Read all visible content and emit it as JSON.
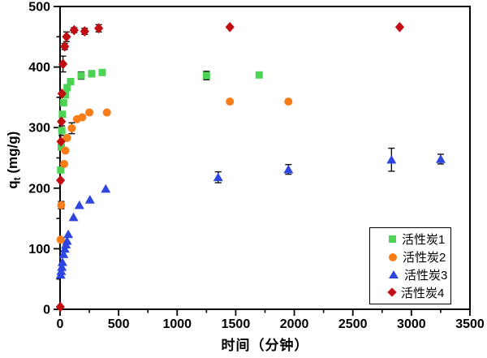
{
  "figure": {
    "background": "#ffffff",
    "axis_color": "#000000",
    "error_bar_color": "#111111"
  },
  "chart_data": {
    "type": "scatter",
    "title": "",
    "xlabel": "时间（分钟）",
    "ylabel": "qt (mg/g)",
    "ylabel_parts": {
      "base": "q",
      "sub": "t",
      "rest": " (mg/g)"
    },
    "xlim": [
      0,
      3500
    ],
    "ylim": [
      0,
      500
    ],
    "x_major_ticks": [
      0,
      500,
      1000,
      1500,
      2000,
      2500,
      3000,
      3500
    ],
    "x_minor_ticks": [
      250,
      750,
      1250,
      1750,
      2250,
      2750,
      3250
    ],
    "y_major_ticks": [
      0,
      100,
      200,
      300,
      400,
      500
    ],
    "y_minor_ticks": [
      50,
      150,
      250,
      350,
      450
    ],
    "grid": false,
    "legend": {
      "position": "inside-lower-right",
      "border_color": "#000000"
    },
    "series": [
      {
        "name": "活性炭1",
        "marker": "square",
        "color": "#4ed455",
        "points": [
          [
            5,
            230,
            0
          ],
          [
            10,
            268,
            0
          ],
          [
            15,
            295,
            8
          ],
          [
            20,
            322,
            0
          ],
          [
            30,
            341,
            0
          ],
          [
            45,
            354,
            0
          ],
          [
            60,
            366,
            0
          ],
          [
            90,
            376,
            0
          ],
          [
            180,
            386,
            6
          ],
          [
            270,
            389,
            5
          ],
          [
            360,
            391,
            0
          ],
          [
            1250,
            386,
            7
          ],
          [
            1700,
            387,
            0
          ]
        ]
      },
      {
        "name": "活性炭2",
        "marker": "circle",
        "color": "#f87c17",
        "points": [
          [
            5,
            115,
            0
          ],
          [
            10,
            172,
            6
          ],
          [
            35,
            240,
            0
          ],
          [
            45,
            262,
            0
          ],
          [
            60,
            283,
            0
          ],
          [
            100,
            299,
            9
          ],
          [
            145,
            314,
            0
          ],
          [
            190,
            317,
            0
          ],
          [
            250,
            325,
            0
          ],
          [
            400,
            325,
            0
          ],
          [
            1450,
            343,
            0
          ],
          [
            1950,
            343,
            0
          ]
        ]
      },
      {
        "name": "活性炭3",
        "marker": "triangle",
        "color": "#2e45e0",
        "points": [
          [
            5,
            57,
            0
          ],
          [
            10,
            63,
            0
          ],
          [
            15,
            70,
            0
          ],
          [
            20,
            78,
            0
          ],
          [
            30,
            91,
            0
          ],
          [
            40,
            100,
            0
          ],
          [
            50,
            107,
            0
          ],
          [
            60,
            113,
            0
          ],
          [
            70,
            124,
            0
          ],
          [
            115,
            152,
            0
          ],
          [
            165,
            172,
            0
          ],
          [
            255,
            181,
            0
          ],
          [
            390,
            199,
            0
          ],
          [
            1350,
            218,
            9
          ],
          [
            1950,
            231,
            8
          ],
          [
            2830,
            247,
            19
          ],
          [
            3250,
            248,
            8
          ]
        ]
      },
      {
        "name": "活性炭4",
        "marker": "diamond",
        "color": "#c00e12",
        "points": [
          [
            2,
            4,
            0
          ],
          [
            4,
            213,
            0
          ],
          [
            8,
            277,
            0
          ],
          [
            12,
            310,
            0
          ],
          [
            16,
            356,
            0
          ],
          [
            25,
            405,
            13
          ],
          [
            40,
            434,
            5
          ],
          [
            55,
            450,
            8
          ],
          [
            120,
            461,
            4
          ],
          [
            210,
            459,
            5
          ],
          [
            330,
            464,
            6
          ],
          [
            1450,
            466,
            0
          ],
          [
            2900,
            466,
            0
          ]
        ]
      }
    ]
  }
}
